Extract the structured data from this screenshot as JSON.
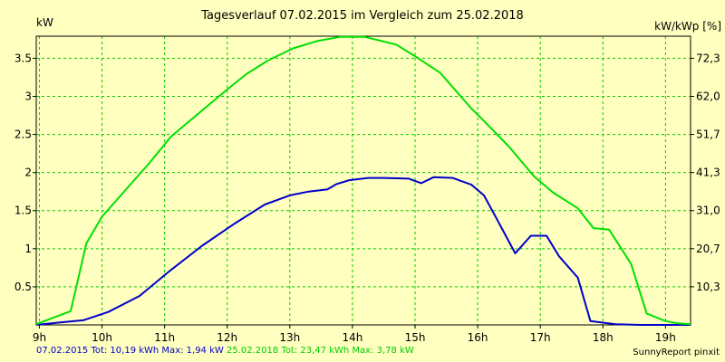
{
  "chart_data": {
    "type": "line",
    "title": "Tagesverlauf 07.02.2015 im Vergleich zum 25.02.2018",
    "ylabel": "kW",
    "ylabel_right": "kW/kWp [%]",
    "xlim": [
      8.95,
      19.4
    ],
    "ylim": [
      0,
      3.79
    ],
    "grid": true,
    "x_ticks": [
      {
        "value": 9,
        "label": "9h"
      },
      {
        "value": 10,
        "label": "10h"
      },
      {
        "value": 11,
        "label": "11h"
      },
      {
        "value": 12,
        "label": "12h"
      },
      {
        "value": 13,
        "label": "13h"
      },
      {
        "value": 14,
        "label": "14h"
      },
      {
        "value": 15,
        "label": "15h"
      },
      {
        "value": 16,
        "label": "16h"
      },
      {
        "value": 17,
        "label": "17h"
      },
      {
        "value": 18,
        "label": "18h"
      },
      {
        "value": 19,
        "label": "19h"
      }
    ],
    "y_ticks": [
      {
        "value": 0.5,
        "label": "0.5"
      },
      {
        "value": 1,
        "label": "1"
      },
      {
        "value": 1.5,
        "label": "1.5"
      },
      {
        "value": 2,
        "label": "2"
      },
      {
        "value": 2.5,
        "label": "2.5"
      },
      {
        "value": 3,
        "label": "3"
      },
      {
        "value": 3.5,
        "label": "3.5"
      }
    ],
    "y_ticks_right": [
      {
        "value": 0.5,
        "label": "10,3"
      },
      {
        "value": 1,
        "label": "20,7"
      },
      {
        "value": 1.5,
        "label": "31,0"
      },
      {
        "value": 2,
        "label": "41,3"
      },
      {
        "value": 2.5,
        "label": "51,7"
      },
      {
        "value": 3,
        "label": "62,0"
      },
      {
        "value": 3.5,
        "label": "72,3"
      }
    ],
    "series": [
      {
        "name": "07.02.2015",
        "color": "#0000cc",
        "x": [
          8.95,
          9.3,
          9.7,
          10.1,
          10.6,
          11.1,
          11.6,
          12.1,
          12.6,
          13.0,
          13.3,
          13.6,
          13.75,
          13.95,
          14.25,
          14.5,
          14.9,
          15.1,
          15.3,
          15.6,
          15.9,
          16.1,
          16.3,
          16.6,
          16.85,
          17.1,
          17.3,
          17.6,
          17.8,
          18.2,
          18.6,
          19.4
        ],
        "y": [
          0.0,
          0.03,
          0.06,
          0.17,
          0.38,
          0.72,
          1.04,
          1.32,
          1.58,
          1.7,
          1.75,
          1.78,
          1.85,
          1.9,
          1.93,
          1.93,
          1.92,
          1.86,
          1.94,
          1.93,
          1.84,
          1.7,
          1.4,
          0.94,
          1.17,
          1.17,
          0.9,
          0.62,
          0.05,
          0.01,
          0.0,
          0.0
        ]
      },
      {
        "name": "25.02.2018",
        "color": "#00e000",
        "x": [
          8.95,
          9.5,
          9.75,
          10.0,
          10.3,
          10.75,
          11.1,
          11.65,
          12.0,
          12.3,
          12.65,
          13.05,
          13.45,
          13.8,
          14.2,
          14.7,
          15.05,
          15.4,
          15.9,
          16.05,
          16.5,
          16.9,
          17.2,
          17.6,
          17.85,
          18.1,
          18.45,
          18.7,
          19.0,
          19.2,
          19.4
        ],
        "y": [
          0.01,
          0.18,
          1.07,
          1.42,
          1.7,
          2.12,
          2.47,
          2.85,
          3.09,
          3.29,
          3.47,
          3.63,
          3.73,
          3.78,
          3.78,
          3.68,
          3.5,
          3.31,
          2.84,
          2.72,
          2.34,
          1.95,
          1.74,
          1.53,
          1.27,
          1.25,
          0.8,
          0.15,
          0.05,
          0.02,
          0.01
        ]
      }
    ]
  },
  "footer": {
    "series1": "07.02.2015 Tot: 10,19 kWh Max: 1,94 kW",
    "series2": "25.02.2018 Tot: 23,47 kWh Max: 3,78 kW"
  },
  "credit": "SunnyReport pinxit",
  "colors": {
    "background": "#ffffc0",
    "grid": "#00cc00"
  }
}
